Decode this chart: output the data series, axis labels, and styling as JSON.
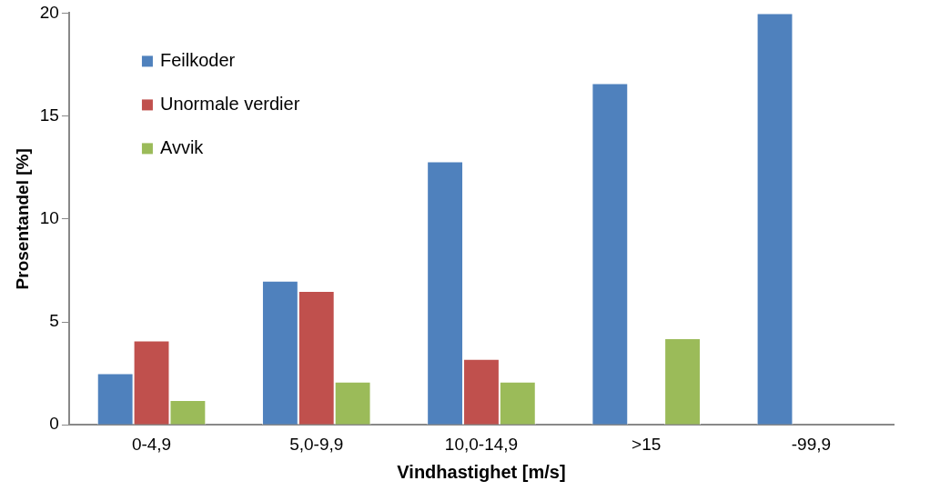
{
  "chart_data": {
    "type": "bar",
    "xlabel": "Vindhastighet [m/s]",
    "ylabel": "Prosentandel [%]",
    "categories": [
      "0-4,9",
      "5,0-9,9",
      "10,0-14,9",
      ">15",
      "-99,9"
    ],
    "series": [
      {
        "name": "Feilkoder",
        "color": "#4f81bd",
        "values": [
          2.5,
          7.0,
          12.8,
          16.6,
          20.0
        ]
      },
      {
        "name": "Unormale verdier",
        "color": "#c0504d",
        "values": [
          4.1,
          6.5,
          3.2,
          null,
          null
        ]
      },
      {
        "name": "Avvik",
        "color": "#9bbb59",
        "values": [
          1.2,
          2.1,
          2.1,
          4.2,
          null
        ]
      }
    ],
    "ylim": [
      0,
      20
    ],
    "yticks": [
      0,
      5,
      10,
      15,
      20
    ],
    "grid": false,
    "legend": "top left"
  }
}
